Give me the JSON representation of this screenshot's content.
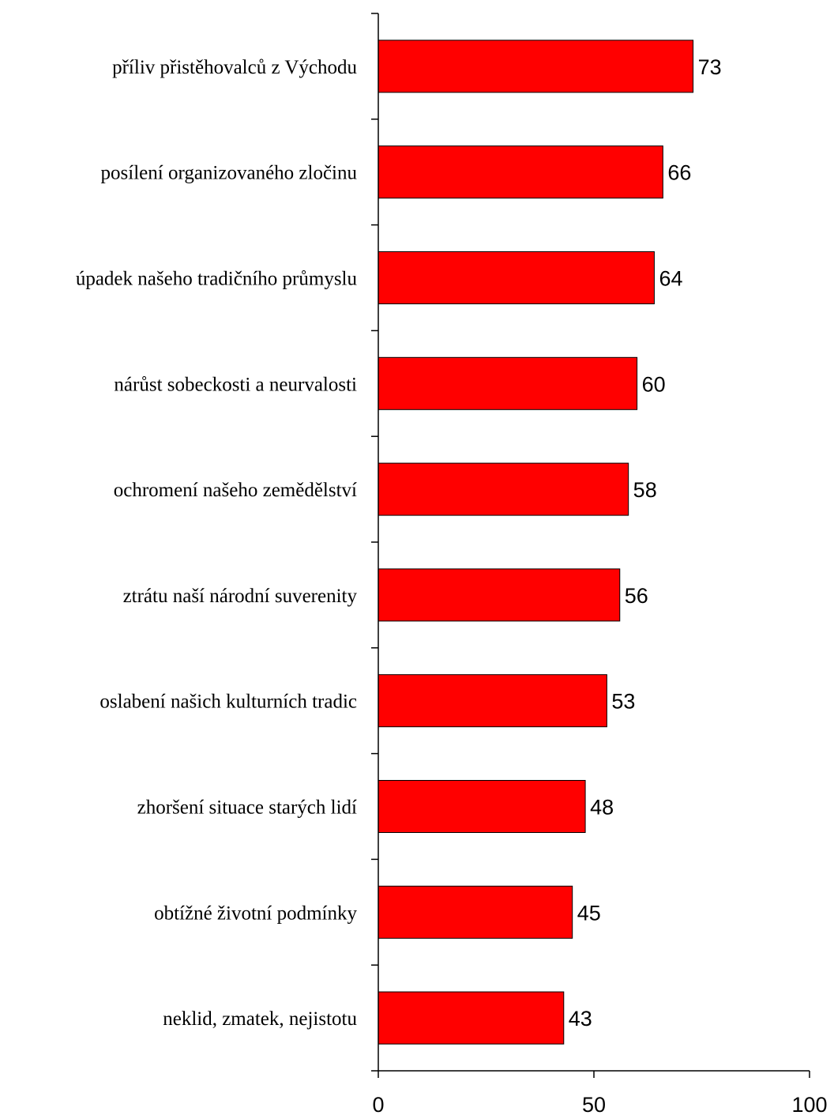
{
  "chart_data": {
    "type": "bar",
    "orientation": "horizontal",
    "title": "",
    "xlabel": "",
    "ylabel": "",
    "categories": [
      "příliv přistěhovalců z Východu",
      "posílení organizovaného zločinu",
      "úpadek našeho tradičního průmyslu",
      "nárůst sobeckosti a neurvalosti",
      "ochromení našeho zemědělství",
      "ztrátu naší národní suverenity",
      "oslabení našich kulturních tradic",
      "zhoršení situace starých lidí",
      "obtížné životní podmínky",
      "neklid, zmatek, nejistotu"
    ],
    "values": [
      73,
      66,
      64,
      60,
      58,
      56,
      53,
      48,
      45,
      43
    ],
    "value_labels": [
      "73",
      "66",
      "64",
      "60",
      "58",
      "56",
      "53",
      "48",
      "45",
      "43"
    ],
    "xlim": [
      0,
      100
    ],
    "x_ticks": [
      0,
      50,
      100
    ],
    "x_tick_labels": [
      "0",
      "50",
      "100"
    ],
    "grid": false,
    "legend": "none",
    "colors": {
      "bar": "#ff0000",
      "axis": "#000000"
    }
  }
}
